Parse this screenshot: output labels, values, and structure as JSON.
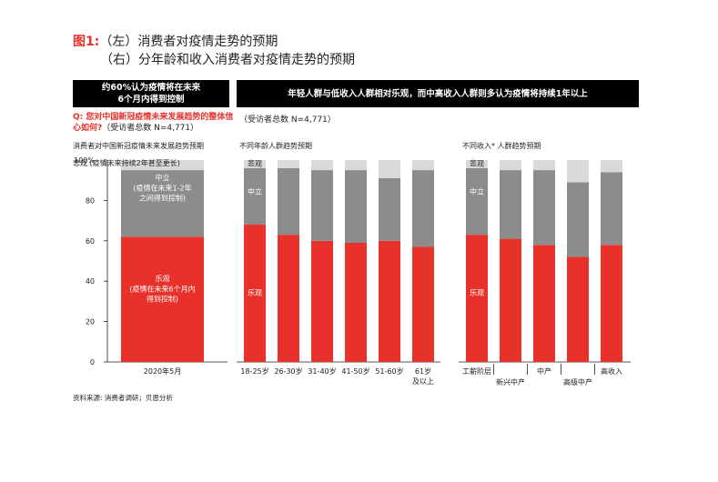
{
  "title": {
    "fig_label": "图1:",
    "line1": "（左）消费者对疫情走势的预期",
    "line2": "（右）分年龄和收入消费者对疫情走势的预期"
  },
  "left_panel": {
    "banner_line1": "约60%认为疫情将在未来",
    "banner_line2": "6个月内得到控制",
    "question": "Q: 您对中国新冠疫情未来发展趋势的整体信心如何?",
    "respondents_inline": "（受访者总数 N=4,771）",
    "subtitle": "消费者对中国新冠疫情未来发展趋势预期"
  },
  "right_panel": {
    "banner": "年轻人群与低收入人群相对乐观，而中高收入人群则多认为疫情将持续1年以上",
    "respondents": "（受访者总数 N=4,771）",
    "age_subtitle": "不同年龄人群趋势预期",
    "income_subtitle": "不同收入* 人群趋势预期"
  },
  "source": "资料来源: 消费者调研；贝恩分析",
  "colors": {
    "optimistic": "#e8312a",
    "neutral": "#8c8c8c",
    "pessimistic": "#d9d9d9",
    "accent": "#e8312a"
  },
  "chart_data": [
    {
      "type": "bar",
      "stacked": true,
      "categories": [
        "2020年5月"
      ],
      "series": [
        {
          "name": "乐观",
          "values": [
            62
          ]
        },
        {
          "name": "中立",
          "values": [
            33
          ]
        },
        {
          "name": "悲观",
          "values": [
            5
          ]
        }
      ],
      "segment_labels": {
        "pessimistic": "悲观 (疫情未来持续2年甚至更长)",
        "neutral_1": "中立",
        "neutral_2": "(疫情在未来1-2年",
        "neutral_3": "之间得到控制)",
        "optimistic_1": "乐观",
        "optimistic_2": "(疫情在未来6个月内",
        "optimistic_3": "得到控制)"
      },
      "ylim": [
        0,
        100
      ],
      "yticks": [
        "0",
        "20",
        "40",
        "60",
        "80",
        "100%"
      ]
    },
    {
      "type": "bar",
      "stacked": true,
      "categories": [
        "18-25岁",
        "26-30岁",
        "31-40岁",
        "41-50岁",
        "51-60岁",
        "61岁及以上"
      ],
      "category_lines": [
        [
          "18-25岁"
        ],
        [
          "26-30岁"
        ],
        [
          "31-40岁"
        ],
        [
          "41-50岁"
        ],
        [
          "51-60岁"
        ],
        [
          "61岁",
          "及以上"
        ]
      ],
      "series": [
        {
          "name": "乐观",
          "values": [
            68,
            63,
            60,
            59,
            60,
            57
          ]
        },
        {
          "name": "中立",
          "values": [
            28,
            33,
            35,
            36,
            31,
            38
          ]
        },
        {
          "name": "悲观",
          "values": [
            4,
            4,
            5,
            5,
            9,
            5
          ]
        }
      ],
      "segment_labels": {
        "pessimistic": "悲观",
        "neutral": "中立",
        "optimistic": "乐观"
      },
      "ylim": [
        0,
        100
      ]
    },
    {
      "type": "bar",
      "stacked": true,
      "categories": [
        "工薪阶层",
        "新兴中产",
        "中产",
        "高级中产",
        "高收入"
      ],
      "category_lines": [
        [
          "工薪阶层"
        ],
        [
          "新兴中产"
        ],
        [
          "中产"
        ],
        [
          "高级中产"
        ],
        [
          "高收入"
        ]
      ],
      "series": [
        {
          "name": "乐观",
          "values": [
            63,
            61,
            58,
            52,
            58
          ]
        },
        {
          "name": "中立",
          "values": [
            33,
            34,
            37,
            37,
            36
          ]
        },
        {
          "name": "悲观",
          "values": [
            4,
            5,
            5,
            11,
            6
          ]
        }
      ],
      "segment_labels": {
        "pessimistic": "悲观",
        "neutral": "中立",
        "optimistic": "乐观"
      },
      "ylim": [
        0,
        100
      ]
    }
  ]
}
